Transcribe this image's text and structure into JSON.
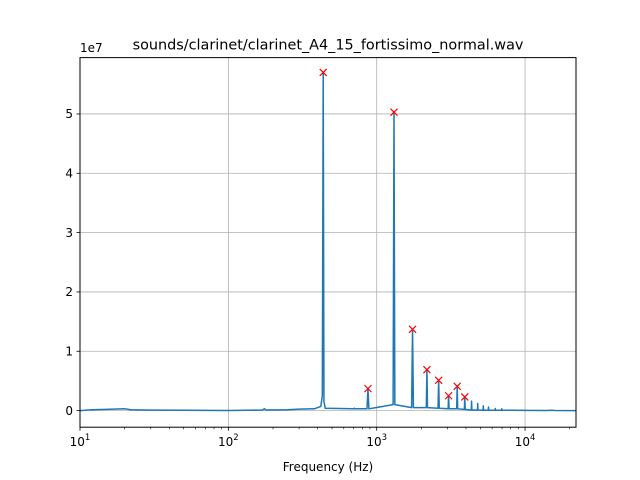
{
  "chart_data": {
    "type": "line",
    "title": "sounds/clarinet/clarinet_A4_15_fortissimo_normal.wav",
    "xlabel": "Frequency (Hz)",
    "ylabel": "",
    "xscale": "log",
    "xlim": [
      10,
      22050
    ],
    "ylim": [
      -2800000,
      59500000
    ],
    "y_offset_label": "1e7",
    "grid": true,
    "x_ticks": [
      {
        "value": 10,
        "base": "10",
        "exp": "1"
      },
      {
        "value": 100,
        "base": "10",
        "exp": "2"
      },
      {
        "value": 1000,
        "base": "10",
        "exp": "3"
      },
      {
        "value": 10000,
        "base": "10",
        "exp": "4"
      }
    ],
    "y_ticks": [
      {
        "value": 0,
        "label": "0"
      },
      {
        "value": 10000000,
        "label": "1"
      },
      {
        "value": 20000000,
        "label": "2"
      },
      {
        "value": 30000000,
        "label": "3"
      },
      {
        "value": 40000000,
        "label": "4"
      },
      {
        "value": 50000000,
        "label": "5"
      }
    ],
    "line_color": "#1f77b4",
    "peak_marker_color": "#ff0000",
    "series": [
      {
        "kind": "spectrum",
        "points": [
          [
            10,
            0
          ],
          [
            12,
            150000
          ],
          [
            15,
            200000
          ],
          [
            20,
            300000
          ],
          [
            22,
            150000
          ],
          [
            30,
            80000
          ],
          [
            50,
            50000
          ],
          [
            100,
            20000
          ],
          [
            170,
            100000
          ],
          [
            175,
            300000
          ],
          [
            180,
            100000
          ],
          [
            250,
            150000
          ],
          [
            300,
            250000
          ],
          [
            380,
            300000
          ],
          [
            420,
            700000
          ],
          [
            430,
            2500000
          ],
          [
            436,
            57000000
          ],
          [
            441,
            1500000
          ],
          [
            450,
            400000
          ],
          [
            700,
            300000
          ],
          [
            706,
            400000
          ],
          [
            712,
            300000
          ],
          [
            860,
            300000
          ],
          [
            873,
            3700000
          ],
          [
            886,
            300000
          ],
          [
            1290,
            1000000
          ],
          [
            1308,
            50300000
          ],
          [
            1325,
            1000000
          ],
          [
            1720,
            500000
          ],
          [
            1744,
            13700000
          ],
          [
            1768,
            500000
          ],
          [
            2160,
            500000
          ],
          [
            2180,
            6900000
          ],
          [
            2200,
            500000
          ],
          [
            2590,
            400000
          ],
          [
            2616,
            5100000
          ],
          [
            2640,
            400000
          ],
          [
            3030,
            300000
          ],
          [
            3052,
            2500000
          ],
          [
            3075,
            300000
          ],
          [
            3460,
            300000
          ],
          [
            3488,
            4100000
          ],
          [
            3515,
            300000
          ],
          [
            3900,
            200000
          ],
          [
            3924,
            2300000
          ],
          [
            3950,
            200000
          ],
          [
            4340,
            100000
          ],
          [
            4360,
            1600000
          ],
          [
            4380,
            100000
          ],
          [
            4780,
            100000
          ],
          [
            4796,
            1200000
          ],
          [
            4815,
            100000
          ],
          [
            5210,
            50000
          ],
          [
            5232,
            800000
          ],
          [
            5250,
            50000
          ],
          [
            5650,
            50000
          ],
          [
            5668,
            600000
          ],
          [
            5690,
            50000
          ],
          [
            6290,
            50000
          ],
          [
            6300,
            350000
          ],
          [
            6320,
            50000
          ],
          [
            6950,
            50000
          ],
          [
            6970,
            300000
          ],
          [
            6990,
            50000
          ],
          [
            8000,
            50000
          ],
          [
            10000,
            30000
          ],
          [
            14000,
            20000
          ],
          [
            15000,
            60000
          ],
          [
            16000,
            10000
          ],
          [
            22050,
            0
          ]
        ]
      }
    ],
    "peaks": [
      {
        "x": 436,
        "y": 57000000
      },
      {
        "x": 873,
        "y": 3700000
      },
      {
        "x": 1308,
        "y": 50300000
      },
      {
        "x": 1744,
        "y": 13700000
      },
      {
        "x": 2180,
        "y": 6900000
      },
      {
        "x": 2616,
        "y": 5100000
      },
      {
        "x": 3052,
        "y": 2500000
      },
      {
        "x": 3488,
        "y": 4100000
      },
      {
        "x": 3924,
        "y": 2300000
      }
    ]
  }
}
